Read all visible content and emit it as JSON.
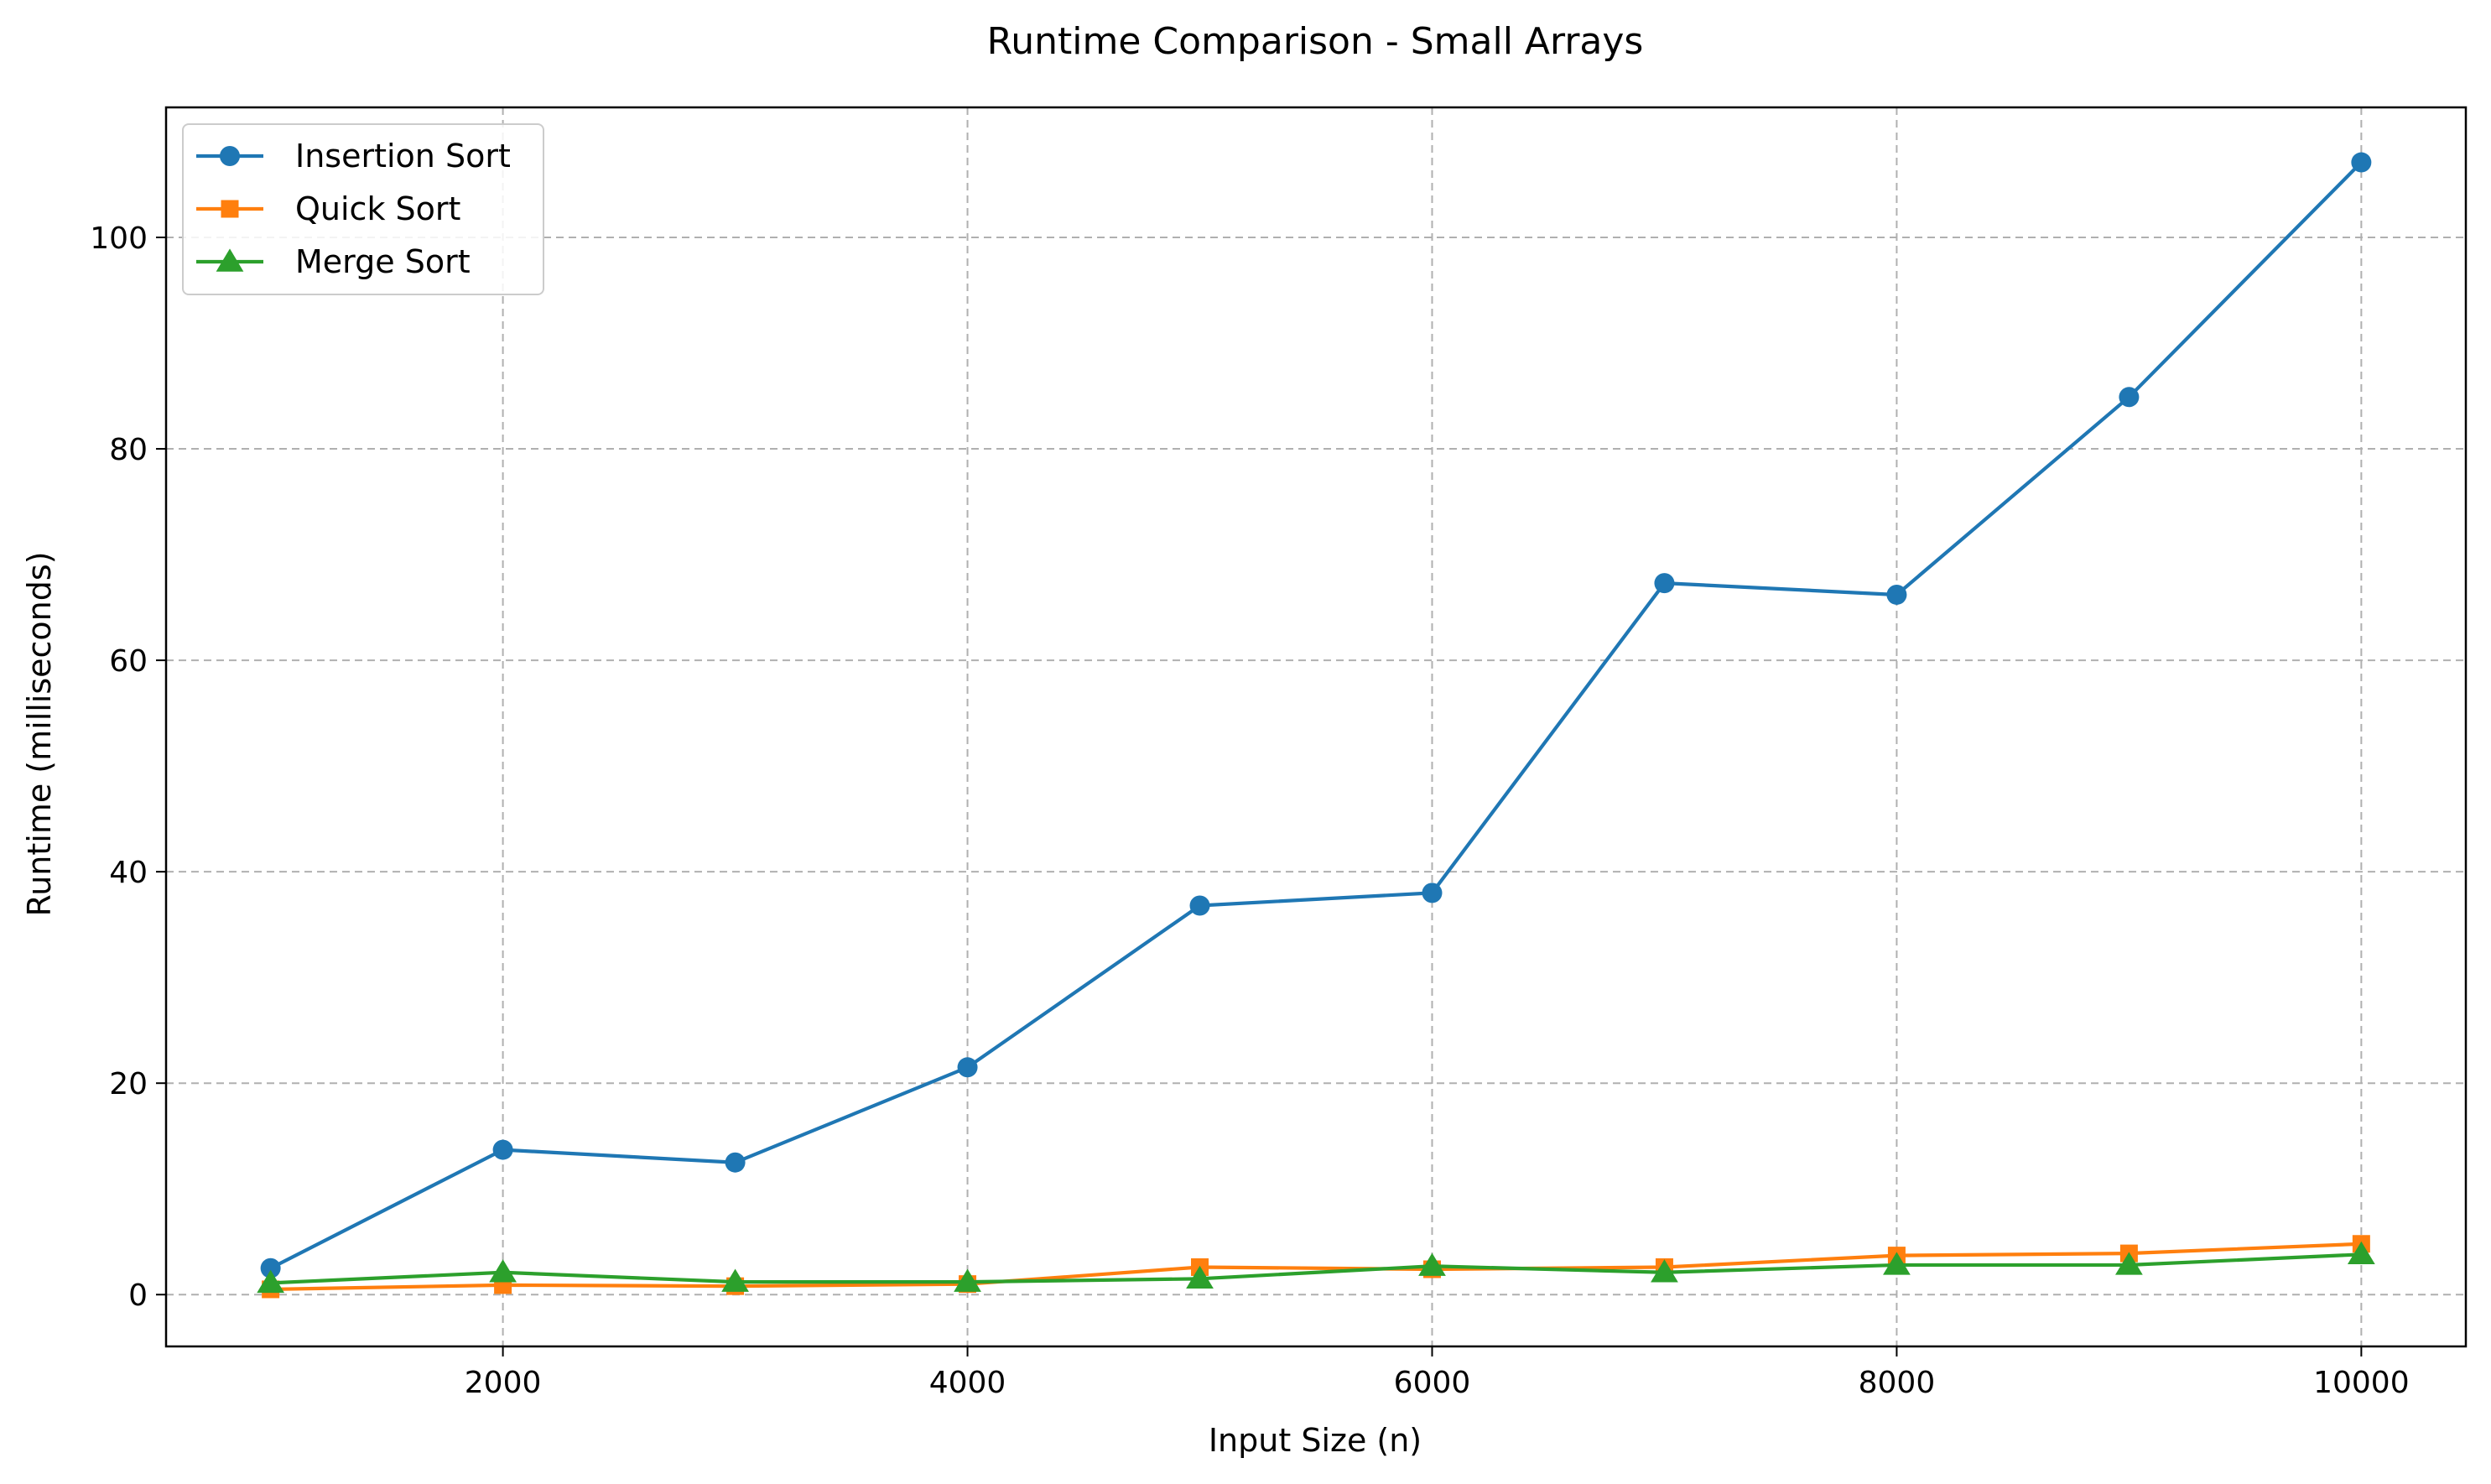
{
  "chart_data": {
    "type": "line",
    "title": "Runtime Comparison - Small Arrays",
    "xlabel": "Input Size (n)",
    "ylabel": "Runtime (milliseconds)",
    "x": [
      1000,
      2000,
      3000,
      4000,
      5000,
      6000,
      7000,
      8000,
      9000,
      10000
    ],
    "xlim": [
      550,
      10450
    ],
    "ylim": [
      -4.9,
      112.3
    ],
    "xticks": [
      2000,
      4000,
      6000,
      8000,
      10000
    ],
    "yticks": [
      0,
      20,
      40,
      60,
      80,
      100
    ],
    "grid": true,
    "legend_position": "top-left",
    "series": [
      {
        "name": "Insertion Sort",
        "color": "#1f77b4",
        "marker": "circle",
        "values": [
          2.5,
          13.7,
          12.5,
          21.5,
          36.8,
          38.0,
          67.3,
          66.2,
          84.9,
          107.1
        ]
      },
      {
        "name": "Quick Sort",
        "color": "#ff7f0e",
        "marker": "square",
        "values": [
          0.5,
          0.9,
          0.8,
          1.0,
          2.6,
          2.4,
          2.6,
          3.7,
          3.9,
          4.8
        ]
      },
      {
        "name": "Merge Sort",
        "color": "#2ca02c",
        "marker": "triangle",
        "values": [
          1.1,
          2.1,
          1.2,
          1.2,
          1.5,
          2.7,
          2.1,
          2.8,
          2.8,
          3.8
        ]
      }
    ]
  }
}
